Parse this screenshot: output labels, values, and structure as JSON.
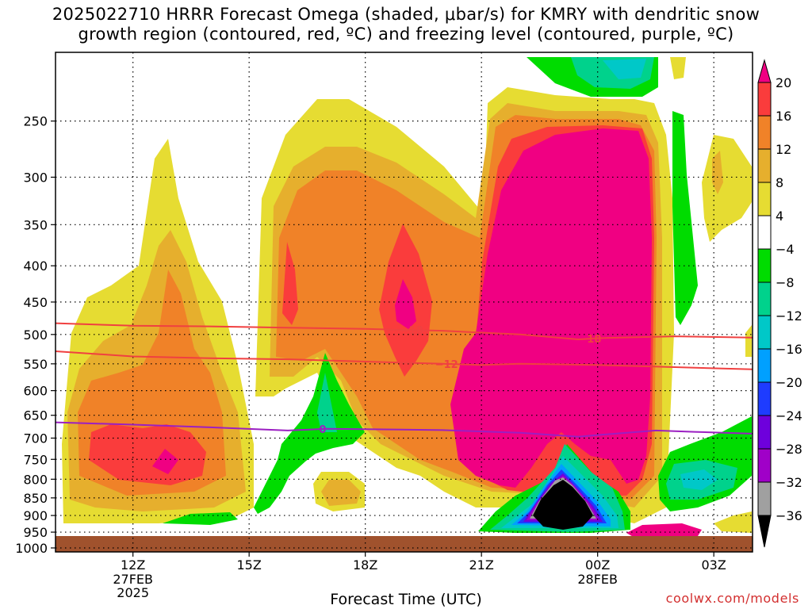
{
  "title": {
    "line1": "2025022710 HRRR Forecast Omega (shaded, μbar/s) for KMRY with dendritic snow",
    "line2": "growth region (contoured, red, ºC) and freezing level (contoured, purple, ºC)"
  },
  "chart_data": {
    "type": "heatmap",
    "title": "2025022710 HRRR Forecast Omega (shaded, μbar/s) for KMRY with dendritic snow growth region (contoured, red, ºC) and freezing level (contoured, purple, ºC)",
    "xlabel": "Forecast Time (UTC)",
    "ylabel": "",
    "x_ticks": [
      {
        "hour": 12,
        "label": "12Z",
        "sub": [
          "27FEB",
          "2025"
        ]
      },
      {
        "hour": 15,
        "label": "15Z",
        "sub": []
      },
      {
        "hour": 18,
        "label": "18Z",
        "sub": []
      },
      {
        "hour": 21,
        "label": "21Z",
        "sub": []
      },
      {
        "hour": 24,
        "label": "00Z",
        "sub": [
          "28FEB"
        ]
      },
      {
        "hour": 27,
        "label": "03Z",
        "sub": []
      }
    ],
    "xlim": [
      10.0,
      28.0
    ],
    "y_ticks": [
      250,
      300,
      350,
      400,
      450,
      500,
      550,
      600,
      650,
      700,
      750,
      800,
      850,
      900,
      950,
      1000
    ],
    "ylim_hpa": [
      1013,
      200
    ],
    "y_scale": "log",
    "colorbar": {
      "levels": [
        -36,
        -32,
        -28,
        -24,
        -20,
        -16,
        -12,
        -8,
        -4,
        4,
        8,
        12,
        16,
        20
      ],
      "colors": [
        "#000000",
        "#a0a0a0",
        "#a000c8",
        "#6e00dc",
        "#1e3cff",
        "#00a0ff",
        "#00c8c8",
        "#00d28c",
        "#00dc00",
        "#ffffff",
        "#e6dc32",
        "#e6af2d",
        "#f08228",
        "#fa3c3c",
        "#f00082"
      ],
      "ticks": [
        {
          "value": 20,
          "label": "20"
        },
        {
          "value": 16,
          "label": "16"
        },
        {
          "value": 12,
          "label": "12"
        },
        {
          "value": 8,
          "label": "8"
        },
        {
          "value": 4,
          "label": "4"
        },
        {
          "value": -4,
          "label": "−4"
        },
        {
          "value": -8,
          "label": "−8"
        },
        {
          "value": -12,
          "label": "−12"
        },
        {
          "value": -16,
          "label": "−16"
        },
        {
          "value": -20,
          "label": "−20"
        },
        {
          "value": -24,
          "label": "−24"
        },
        {
          "value": -28,
          "label": "−28"
        },
        {
          "value": -32,
          "label": "−32"
        },
        {
          "value": -36,
          "label": "−36"
        }
      ]
    },
    "contours": [
      {
        "name": "−18°C isotherm",
        "color": "#f04040",
        "label": "−18",
        "x": [
          10,
          12,
          14,
          16,
          18,
          20,
          22,
          23.5,
          24,
          26,
          28
        ],
        "p": [
          482,
          486,
          487,
          489,
          491,
          494,
          500,
          508,
          506,
          503,
          505
        ],
        "labels_at": [
          19.2,
          23.8
        ]
      },
      {
        "name": "−12°C isotherm",
        "color": "#f04040",
        "label": "−12",
        "x": [
          10,
          12,
          14,
          16,
          18,
          20,
          21,
          22,
          24,
          26,
          28
        ],
        "p": [
          528,
          537,
          540,
          542,
          546,
          550,
          552,
          550,
          552,
          556,
          560
        ],
        "labels_at": [
          20.1
        ]
      },
      {
        "name": "0°C isotherm (freezing level)",
        "color": "#9b1fc2",
        "label": "0",
        "x": [
          10,
          12,
          14,
          16,
          17,
          18,
          20,
          22,
          23.5,
          24,
          25.5,
          26.5,
          28
        ],
        "p": [
          665,
          670,
          676,
          683,
          679,
          680,
          682,
          688,
          697,
          693,
          683,
          686,
          690
        ],
        "labels_at": [
          16.9
        ]
      }
    ],
    "omega_features": [
      {
        "desc": "large ascent maximum, centre 23.5Z 550 hPa",
        "max_value": 20,
        "x": [
          20.8,
          26.0
        ],
        "p": [
          260,
          860
        ]
      },
      {
        "desc": "ascent maximum, centre 19.1Z 450 hPa",
        "max_value": 20,
        "x": [
          18.3,
          20.3
        ],
        "p": [
          370,
          560
        ]
      },
      {
        "desc": "ascent band 12-13.5Z 750-800 hPa",
        "max_value": 20,
        "x": [
          10.3,
          15.0
        ],
        "p": [
          380,
          950
        ]
      },
      {
        "desc": "strong subsidence maximum, centre 23Z 925 hPa",
        "min_value": -36,
        "x": [
          22.0,
          24.5
        ],
        "p": [
          720,
          990
        ]
      },
      {
        "desc": "subsidence 26.5Z 800 hPa",
        "min_value": -16,
        "x": [
          25.8,
          28.0
        ],
        "p": [
          740,
          930
        ]
      },
      {
        "desc": "subsidence 17Z 650 hPa",
        "min_value": -12,
        "x": [
          15.5,
          18.0
        ],
        "p": [
          560,
          900
        ]
      }
    ],
    "ground": {
      "color": "#a0522d"
    }
  },
  "x_axis_title": "Forecast Time (UTC)",
  "source_credit": "coolwx.com/models"
}
